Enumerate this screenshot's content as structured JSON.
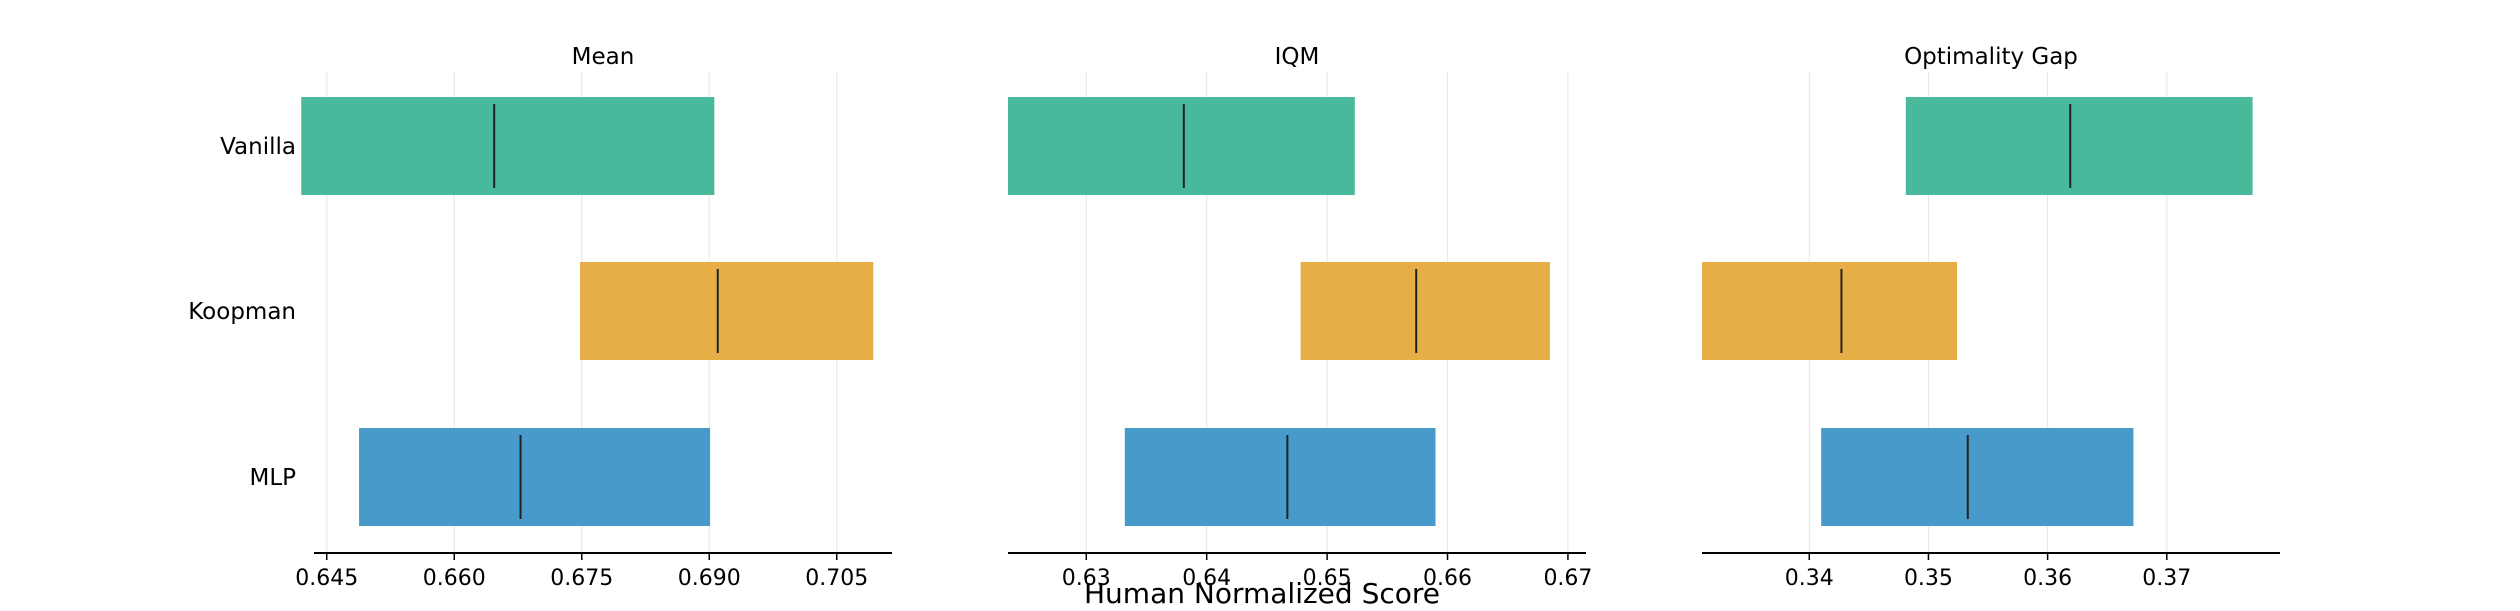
{
  "colors": {
    "Vanilla": "#45b899",
    "Koopman": "#e7ab42",
    "MLP": "#4398c8"
  },
  "chart_data": {
    "type": "interval",
    "xlabel": "Human Normalized Score",
    "categories": [
      "Vanilla",
      "Koopman",
      "MLP"
    ],
    "panels": [
      {
        "title": "Mean",
        "xlim": [
          0.6435,
          0.7115
        ],
        "ticks": [
          0.645,
          0.66,
          0.675,
          0.69,
          0.705
        ],
        "tick_labels": [
          "0.645",
          "0.660",
          "0.675",
          "0.690",
          "0.705"
        ],
        "intervals": [
          {
            "name": "Vanilla",
            "low": 0.642,
            "high": 0.6906,
            "point": 0.6647
          },
          {
            "name": "Koopman",
            "low": 0.6748,
            "high": 0.7093,
            "point": 0.691
          },
          {
            "name": "MLP",
            "low": 0.6488,
            "high": 0.6901,
            "point": 0.6678
          }
        ]
      },
      {
        "title": "IQM",
        "xlim": [
          0.6235,
          0.6715
        ],
        "ticks": [
          0.63,
          0.64,
          0.65,
          0.66,
          0.67
        ],
        "tick_labels": [
          "0.63",
          "0.64",
          "0.65",
          "0.66",
          "0.67"
        ],
        "intervals": [
          {
            "name": "Vanilla",
            "low": 0.6235,
            "high": 0.6523,
            "point": 0.6381
          },
          {
            "name": "Koopman",
            "low": 0.6478,
            "high": 0.6685,
            "point": 0.6574
          },
          {
            "name": "MLP",
            "low": 0.6332,
            "high": 0.659,
            "point": 0.6467
          }
        ]
      },
      {
        "title": "Optimality Gap",
        "xlim": [
          0.331,
          0.3795
        ],
        "ticks": [
          0.34,
          0.35,
          0.36,
          0.37
        ],
        "tick_labels": [
          "0.34",
          "0.35",
          "0.36",
          "0.37"
        ],
        "intervals": [
          {
            "name": "Vanilla",
            "low": 0.3481,
            "high": 0.3772,
            "point": 0.3619
          },
          {
            "name": "Koopman",
            "low": 0.331,
            "high": 0.3524,
            "point": 0.3427
          },
          {
            "name": "MLP",
            "low": 0.341,
            "high": 0.3672,
            "point": 0.3533
          }
        ]
      }
    ]
  }
}
